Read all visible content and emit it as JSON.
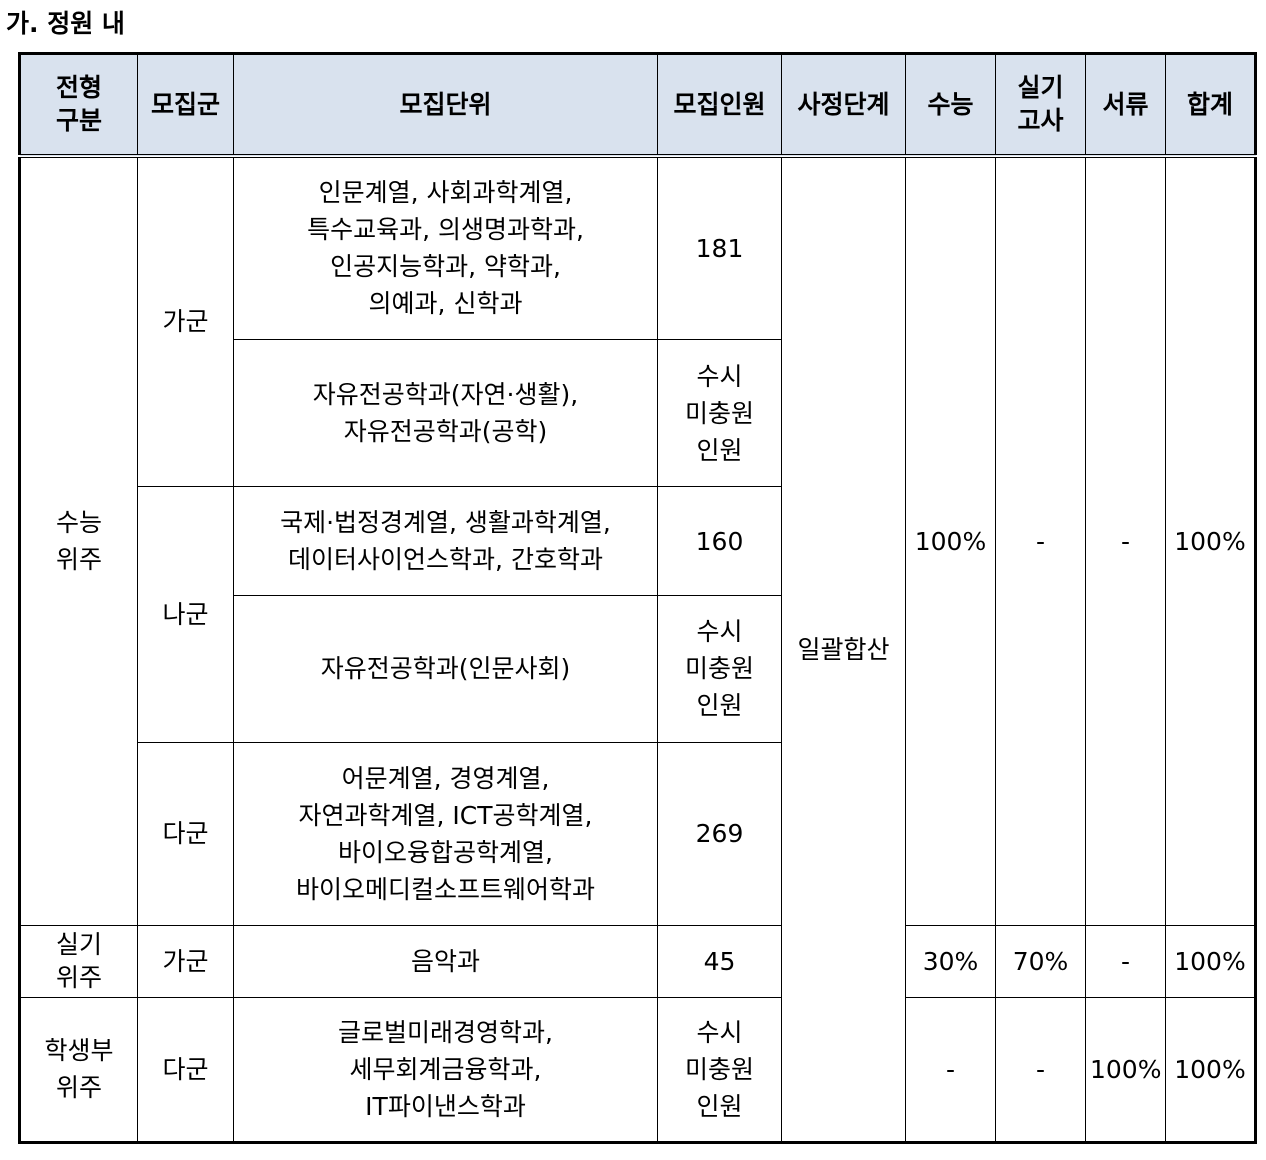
{
  "section_title": "가. 정원 내",
  "headers": {
    "type": "전형\n구분",
    "group": "모집군",
    "unit": "모집단위",
    "quota": "모집인원",
    "stage": "사정단계",
    "csat": "수능",
    "practical": "실기\n고사",
    "docs": "서류",
    "total": "합계"
  },
  "rows": {
    "type_csat": "수능\n위주",
    "type_practical": "실기\n위주",
    "type_record": "학생부\n위주",
    "group_ga": "가군",
    "group_na": "나군",
    "group_da": "다군",
    "group_ga2": "가군",
    "group_da2": "다군",
    "unit1": "인문계열, 사회과학계열,\n특수교육과, 의생명과학과,\n인공지능학과, 약학과,\n의예과, 신학과",
    "quota1": "181",
    "unit2": "자유전공학과(자연·생활),\n자유전공학과(공학)",
    "quota2": "수시\n미충원\n인원",
    "unit3": "국제·법정경계열, 생활과학계열,\n데이터사이언스학과, 간호학과",
    "quota3": "160",
    "unit4": "자유전공학과(인문사회)",
    "quota4": "수시\n미충원\n인원",
    "unit5": "어문계열, 경영계열,\n자연과학계열, ICT공학계열,\n바이오융합공학계열,\n바이오메디컬소프트웨어학과",
    "quota5": "269",
    "stage": "일괄합산",
    "csat_csat": "100%",
    "csat_practical": "-",
    "csat_docs": "-",
    "csat_total": "100%",
    "unit6": "음악과",
    "quota6": "45",
    "prac_csat": "30%",
    "prac_practical": "70%",
    "prac_docs": "-",
    "prac_total": "100%",
    "unit7": "글로벌미래경영학과,\n세무회계금융학과,\nIT파이낸스학과",
    "quota7": "수시\n미충원\n인원",
    "rec_csat": "-",
    "rec_practical": "-",
    "rec_docs": "100%",
    "rec_total": "100%"
  }
}
